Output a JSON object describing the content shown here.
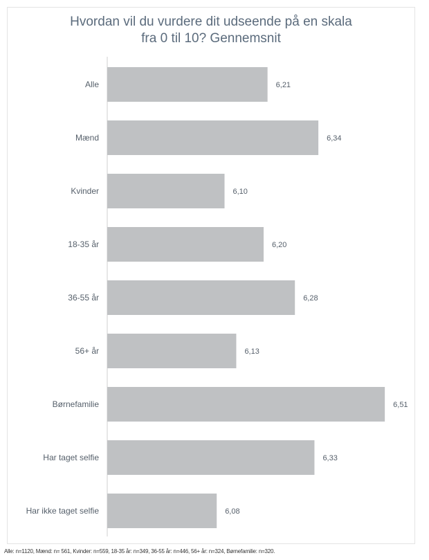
{
  "chart_data": {
    "type": "bar",
    "orientation": "horizontal",
    "title_lines": [
      "Hvordan vil du vurdere dit udseende på en skala",
      "fra 0 til 10? Gennemsnit"
    ],
    "categories": [
      "Alle",
      "Mænd",
      "Kvinder",
      "18-35 år",
      "36-55 år",
      "56+ år",
      "Børnefamilie",
      "Har taget selfie",
      "Har ikke taget selfie"
    ],
    "values": [
      6.21,
      6.34,
      6.1,
      6.2,
      6.28,
      6.13,
      6.51,
      6.33,
      6.08
    ],
    "value_labels": [
      "6,21",
      "6,34",
      "6,10",
      "6,20",
      "6,28",
      "6,13",
      "6,51",
      "6,33",
      "6,08"
    ],
    "xlim": [
      5.8,
      6.55
    ],
    "bar_color": "#bfc1c3",
    "text_color": "#555f6a",
    "title_color": "#5b6b7c",
    "grid": false,
    "legend": "none"
  },
  "footnote": "Alle: n=1120, Mænd: n= 561, Kvinder: n=559, 18-35 år: n=349, 36-55 år: n=446, 56+ år: n=324, Børnefamilie: n=320."
}
